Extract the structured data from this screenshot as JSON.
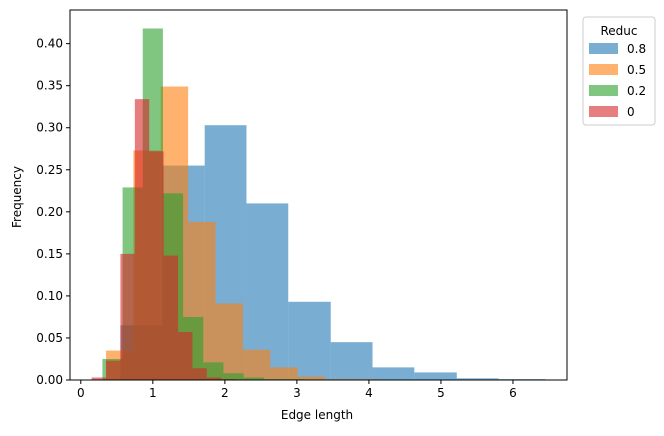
{
  "chart_data": {
    "type": "histogram",
    "xlabel": "Edge length",
    "ylabel": "Frequency",
    "xlim": [
      -0.15,
      6.75
    ],
    "ylim": [
      0,
      0.44
    ],
    "x_ticks": [
      0,
      1,
      2,
      3,
      4,
      5,
      6
    ],
    "y_ticks": [
      0.0,
      0.05,
      0.1,
      0.15,
      0.2,
      0.25,
      0.3,
      0.35,
      0.4
    ],
    "grid": false,
    "legend": {
      "title": "Reduc",
      "placement": "outside-top-right"
    },
    "series": [
      {
        "name": "0.8",
        "color": "#1f77b4",
        "alpha": 0.6,
        "bins": [
          [
            0.55,
            1.13,
            0.065
          ],
          [
            1.13,
            1.72,
            0.255
          ],
          [
            1.72,
            2.3,
            0.303
          ],
          [
            2.3,
            2.88,
            0.21
          ],
          [
            2.88,
            3.47,
            0.093
          ],
          [
            3.47,
            4.05,
            0.045
          ],
          [
            4.05,
            4.63,
            0.015
          ],
          [
            4.63,
            5.22,
            0.009
          ],
          [
            5.22,
            5.8,
            0.002
          ],
          [
            5.8,
            6.45,
            0.001
          ]
        ]
      },
      {
        "name": "0.5",
        "color": "#ff7f0e",
        "alpha": 0.6,
        "bins": [
          [
            0.35,
            0.73,
            0.035
          ],
          [
            0.73,
            1.11,
            0.273
          ],
          [
            1.11,
            1.49,
            0.349
          ],
          [
            1.49,
            1.87,
            0.188
          ],
          [
            1.87,
            2.25,
            0.091
          ],
          [
            2.25,
            2.63,
            0.036
          ],
          [
            2.63,
            3.01,
            0.015
          ],
          [
            3.01,
            3.39,
            0.004
          ],
          [
            3.39,
            3.77,
            0.001
          ],
          [
            3.77,
            4.15,
            0.001
          ]
        ]
      },
      {
        "name": "0.2",
        "color": "#2ca02c",
        "alpha": 0.6,
        "bins": [
          [
            0.3,
            0.58,
            0.025
          ],
          [
            0.58,
            0.86,
            0.229
          ],
          [
            0.86,
            1.14,
            0.418
          ],
          [
            1.14,
            1.42,
            0.222
          ],
          [
            1.42,
            1.7,
            0.075
          ],
          [
            1.7,
            1.98,
            0.021
          ],
          [
            1.98,
            2.26,
            0.008
          ],
          [
            2.26,
            2.54,
            0.003
          ],
          [
            2.54,
            2.82,
            0.001
          ],
          [
            2.82,
            3.1,
            0.001
          ]
        ]
      },
      {
        "name": "0",
        "color": "#d62728",
        "alpha": 0.6,
        "bins": [
          [
            0.15,
            0.35,
            0.003
          ],
          [
            0.35,
            0.55,
            0.023
          ],
          [
            0.55,
            0.75,
            0.15
          ],
          [
            0.75,
            0.95,
            0.334
          ],
          [
            0.95,
            1.15,
            0.272
          ],
          [
            1.15,
            1.35,
            0.148
          ],
          [
            1.35,
            1.55,
            0.057
          ],
          [
            1.55,
            1.75,
            0.014
          ],
          [
            1.75,
            1.95,
            0.003
          ],
          [
            1.95,
            2.15,
            0.001
          ]
        ]
      }
    ]
  }
}
